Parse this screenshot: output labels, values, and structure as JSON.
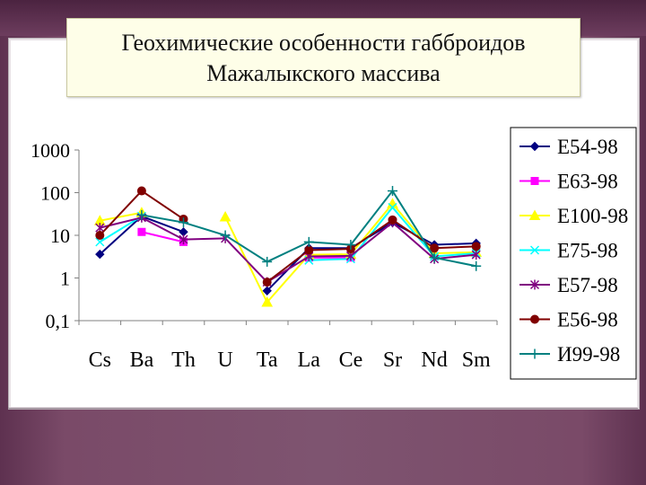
{
  "title": {
    "line1": "Геохимические особенности габброидов",
    "line2": "Мажалыкского массива"
  },
  "chart_data": {
    "type": "line",
    "yscale": "log",
    "ylim": [
      0.1,
      1000
    ],
    "yticks": [
      {
        "v": 1000,
        "label": "1000"
      },
      {
        "v": 100,
        "label": "100"
      },
      {
        "v": 10,
        "label": "10"
      },
      {
        "v": 1,
        "label": "1"
      },
      {
        "v": 0.1,
        "label": "0,1"
      }
    ],
    "categories": [
      "Cs",
      "Ba",
      "Th",
      "U",
      "Ta",
      "La",
      "Ce",
      "Sr",
      "Nd",
      "Sm"
    ],
    "grid": false,
    "legend_position": "right",
    "series": [
      {
        "name": "E54-98",
        "color": "#000080",
        "marker": "diamond",
        "values": [
          3.6,
          28,
          12,
          null,
          0.5,
          5,
          5,
          20,
          6,
          6.5
        ]
      },
      {
        "name": "E63-98",
        "color": "#ff00ff",
        "marker": "square",
        "values": [
          null,
          12,
          7,
          null,
          null,
          3,
          3,
          null,
          null,
          null
        ]
      },
      {
        "name": "E100-98",
        "color": "#ffff00",
        "marker": "triangle",
        "values": [
          22,
          34,
          null,
          27,
          0.27,
          3.5,
          3.6,
          55,
          3.8,
          4
        ]
      },
      {
        "name": "E75-98",
        "color": "#00ffff",
        "marker": "x",
        "values": [
          7,
          28,
          null,
          null,
          null,
          2.6,
          2.8,
          45,
          3.2,
          3.8
        ]
      },
      {
        "name": "E57-98",
        "color": "#800080",
        "marker": "star",
        "values": [
          15,
          26,
          8,
          8.5,
          0.8,
          3.2,
          3.3,
          20,
          2.8,
          3.5
        ]
      },
      {
        "name": "E56-98",
        "color": "#800000",
        "marker": "circle",
        "values": [
          10,
          110,
          24,
          null,
          0.8,
          4.5,
          4.8,
          23,
          5,
          5.5
        ]
      },
      {
        "name": "И99-98",
        "color": "#008080",
        "marker": "plus",
        "values": [
          null,
          30,
          20,
          10,
          2.4,
          7,
          6,
          110,
          3,
          1.9
        ]
      }
    ]
  }
}
